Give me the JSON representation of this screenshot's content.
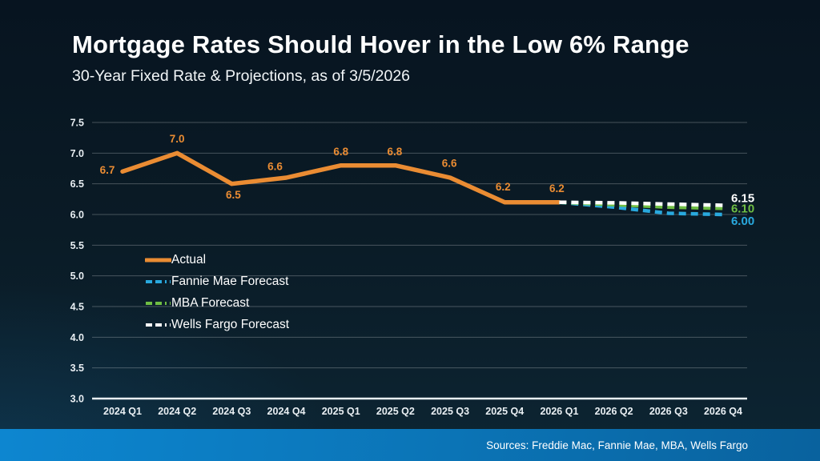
{
  "slide": {
    "title": "Mortgage Rates Should Hover in the Low 6% Range",
    "subtitle": "30-Year Fixed Rate & Projections, as of 3/5/2026",
    "source_note": "Sources: Freddie Mac, Fannie Mae, MBA, Wells Fargo"
  },
  "colors": {
    "actual": "#EA8C33",
    "fannie_mae": "#29A9DE",
    "mba": "#6FBE44",
    "wells_fargo": "#FFFFFF",
    "gridline": "rgba(255,255,255,0.25)",
    "baseline": "#E9EFF3",
    "axis_text": "#E9EFF3"
  },
  "chart_data": {
    "type": "line",
    "title": "30-Year Fixed Rate & Projections, as of 3/5/2026",
    "categories": [
      "2024 Q1",
      "2024 Q2",
      "2024 Q3",
      "2024 Q4",
      "2025 Q1",
      "2025 Q2",
      "2025 Q3",
      "2025 Q4",
      "2026 Q1",
      "2026 Q2",
      "2026 Q3",
      "2026 Q4"
    ],
    "y_axis": {
      "min": 3.0,
      "max": 7.5,
      "step": 0.5,
      "grid": true
    },
    "legend_position": "middle-left",
    "series": [
      {
        "name": "Actual",
        "color_key": "actual",
        "dashed": false,
        "values": [
          6.7,
          7.0,
          6.5,
          6.6,
          6.8,
          6.8,
          6.6,
          6.2,
          6.2,
          null,
          null,
          null
        ],
        "point_labels": [
          {
            "i": 0,
            "text": "6.7",
            "dx": -19,
            "dy": -2
          },
          {
            "i": 1,
            "text": "7.0",
            "dx": 0,
            "dy": -18
          },
          {
            "i": 2,
            "text": "6.5",
            "dx": 2,
            "dy": 14
          },
          {
            "i": 3,
            "text": "6.6",
            "dx": -14,
            "dy": -14
          },
          {
            "i": 4,
            "text": "6.8",
            "dx": 0,
            "dy": -17
          },
          {
            "i": 5,
            "text": "6.8",
            "dx": -1,
            "dy": -17
          },
          {
            "i": 6,
            "text": "6.6",
            "dx": -1,
            "dy": -18
          },
          {
            "i": 7,
            "text": "6.2",
            "dx": -2,
            "dy": -19
          },
          {
            "i": 8,
            "text": "6.2",
            "dx": -3,
            "dy": -17
          }
        ]
      },
      {
        "name": "Fannie Mae Forecast",
        "color_key": "fannie_mae",
        "dashed": true,
        "values": [
          null,
          null,
          null,
          null,
          null,
          null,
          null,
          null,
          6.2,
          6.12,
          6.02,
          6.0
        ],
        "end_label": {
          "text": "6.00",
          "dy": 8
        }
      },
      {
        "name": "MBA Forecast",
        "color_key": "mba",
        "dashed": true,
        "values": [
          null,
          null,
          null,
          null,
          null,
          null,
          null,
          null,
          6.2,
          6.16,
          6.12,
          6.1
        ],
        "end_label": {
          "text": "6.10",
          "dy": 0
        }
      },
      {
        "name": "Wells Fargo Forecast",
        "color_key": "wells_fargo",
        "dashed": true,
        "values": [
          null,
          null,
          null,
          null,
          null,
          null,
          null,
          null,
          6.2,
          6.19,
          6.17,
          6.15
        ],
        "end_label": {
          "text": "6.15",
          "dy": -9
        }
      }
    ]
  }
}
